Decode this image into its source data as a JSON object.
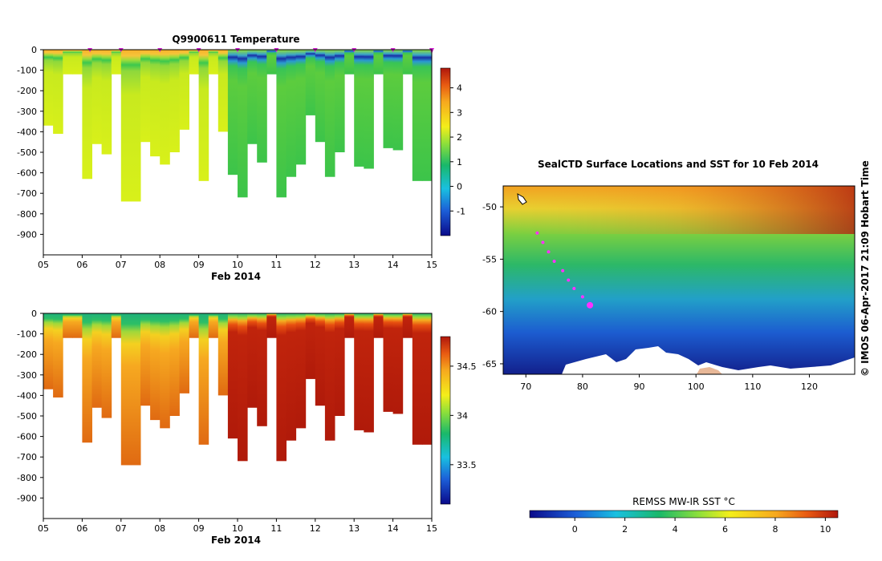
{
  "chart_data": [
    {
      "type": "heatmap",
      "title": "Q9900611  Temperature",
      "xlabel": "Feb 2014",
      "ylabel": "",
      "x_ticks": [
        "05",
        "06",
        "07",
        "08",
        "09",
        "10",
        "11",
        "12",
        "13",
        "14",
        "15"
      ],
      "y_ticks": [
        "0",
        "-100",
        "-200",
        "-300",
        "-400",
        "-500",
        "-600",
        "-700",
        "-800",
        "-900"
      ],
      "xlim": [
        5,
        15
      ],
      "ylim": [
        -1000,
        0
      ],
      "colorbar": {
        "min": -2,
        "max": 4.8,
        "ticks": [
          "4",
          "3",
          "2",
          "1",
          "0",
          "-1"
        ],
        "tick_values": [
          4,
          3,
          2,
          1,
          0,
          -1
        ]
      },
      "profile_markers_days": [
        6.2,
        7.0,
        8.0,
        9.0,
        10.0,
        11.0,
        12.0,
        13.0,
        14.0,
        15.0
      ],
      "profile_depths_m": [
        -370,
        -410,
        -120,
        -120,
        -630,
        -460,
        -510,
        -120,
        -740,
        -740,
        -450,
        -520,
        -560,
        -500,
        -390,
        -120,
        -640,
        -120,
        -400,
        -610,
        -720,
        -460,
        -550,
        -120,
        -720,
        -620,
        -560,
        -320,
        -450,
        -620,
        -500,
        -120,
        -570,
        -580,
        -120,
        -480,
        -490,
        -120,
        -640,
        -640
      ]
    },
    {
      "type": "heatmap",
      "title": "",
      "xlabel": "Feb 2014",
      "ylabel": "",
      "x_ticks": [
        "05",
        "06",
        "07",
        "08",
        "09",
        "10",
        "11",
        "12",
        "13",
        "14",
        "15"
      ],
      "y_ticks": [
        "0",
        "-100",
        "-200",
        "-300",
        "-400",
        "-500",
        "-600",
        "-700",
        "-800",
        "-900"
      ],
      "xlim": [
        5,
        15
      ],
      "ylim": [
        -1000,
        0
      ],
      "colorbar": {
        "min": 33.1,
        "max": 34.8,
        "ticks": [
          "34.5",
          "34",
          "33.5"
        ],
        "tick_values": [
          34.5,
          34,
          33.5
        ]
      }
    },
    {
      "type": "heatmap",
      "title": "SealCTD Surface Locations and SST for 10 Feb 2014",
      "x_ticks": [
        "70",
        "80",
        "90",
        "100",
        "110",
        "120"
      ],
      "y_ticks": [
        "-50",
        "-55",
        "-60",
        "-65"
      ],
      "xlim": [
        66,
        128
      ],
      "ylim": [
        -66,
        -48
      ],
      "track": {
        "lon": [
          72.0,
          73.0,
          74.0,
          75.0,
          76.5,
          77.5,
          78.5,
          80.0,
          81.3
        ],
        "lat": [
          -52.5,
          -53.4,
          -54.3,
          -55.2,
          -56.1,
          -57.0,
          -57.8,
          -58.6,
          -59.4
        ]
      },
      "colorbar": {
        "label": "REMSS MW-IR SST °C",
        "min": -1.8,
        "max": 10.5,
        "ticks": [
          "0",
          "2",
          "4",
          "6",
          "8",
          "10"
        ],
        "tick_values": [
          0,
          2,
          4,
          6,
          8,
          10
        ]
      },
      "side_label": "© IMOS 06-Apr-2017 21:09 Hobart Time"
    }
  ]
}
